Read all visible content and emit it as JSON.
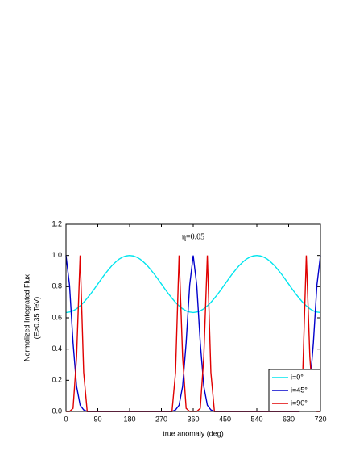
{
  "chart_data": {
    "type": "line",
    "title": "η=0.05",
    "x_label": "true anomaly (deg)",
    "y_label": [
      "Normalized Integrated Flux",
      "(E>0.35 TeV)"
    ],
    "x": [
      0,
      10,
      20,
      30,
      40,
      50,
      60,
      70,
      80,
      90,
      100,
      110,
      120,
      130,
      140,
      150,
      160,
      170,
      180,
      190,
      200,
      210,
      220,
      230,
      240,
      250,
      260,
      270,
      280,
      290,
      300,
      310,
      320,
      330,
      340,
      350,
      360,
      370,
      380,
      390,
      400,
      410,
      420,
      430,
      440,
      450,
      460,
      470,
      480,
      490,
      500,
      510,
      520,
      530,
      540,
      550,
      560,
      570,
      580,
      590,
      600,
      610,
      620,
      630,
      640,
      650,
      660,
      670,
      680,
      690,
      700,
      710,
      720
    ],
    "series": [
      {
        "name": "i=0°",
        "color": "#00e5ee",
        "values": [
          0.634,
          0.637,
          0.645,
          0.658,
          0.677,
          0.699,
          0.726,
          0.754,
          0.785,
          0.817,
          0.849,
          0.88,
          0.908,
          0.935,
          0.957,
          0.976,
          0.989,
          0.997,
          1.0,
          0.997,
          0.989,
          0.976,
          0.957,
          0.935,
          0.908,
          0.88,
          0.849,
          0.817,
          0.785,
          0.754,
          0.726,
          0.699,
          0.677,
          0.658,
          0.645,
          0.637,
          0.634,
          0.637,
          0.645,
          0.658,
          0.677,
          0.699,
          0.726,
          0.754,
          0.785,
          0.817,
          0.849,
          0.88,
          0.908,
          0.935,
          0.957,
          0.976,
          0.989,
          0.997,
          1.0,
          0.997,
          0.989,
          0.976,
          0.957,
          0.935,
          0.908,
          0.88,
          0.849,
          0.817,
          0.785,
          0.754,
          0.726,
          0.699,
          0.677,
          0.658,
          0.645,
          0.637,
          0.634
        ]
      },
      {
        "name": "i=45°",
        "color": "#0000cc",
        "values": [
          1,
          0.81,
          0.44,
          0.16,
          0.04,
          0.01,
          0,
          0,
          0,
          0,
          0,
          0,
          0,
          0,
          0,
          0,
          0,
          0,
          0,
          0,
          0,
          0,
          0,
          0,
          0,
          0,
          0,
          0,
          0,
          0,
          0,
          0.01,
          0.04,
          0.16,
          0.44,
          0.81,
          1,
          0.81,
          0.44,
          0.16,
          0.04,
          0.01,
          0,
          0,
          0,
          0,
          0,
          0,
          0,
          0,
          0,
          0,
          0,
          0,
          0,
          0,
          0,
          0,
          0,
          0,
          0,
          0,
          0,
          0,
          0,
          0,
          0,
          0.01,
          0.04,
          0.16,
          0.44,
          0.81,
          1
        ]
      },
      {
        "name": "i=90°",
        "color": "#e00000",
        "values": [
          0,
          0,
          0.02,
          0.35,
          1,
          0.25,
          0,
          0,
          0,
          0,
          0,
          0,
          0,
          0,
          0,
          0,
          0,
          0,
          0,
          0,
          0,
          0,
          0,
          0,
          0,
          0,
          0,
          0,
          0,
          0,
          0,
          0.25,
          1,
          0.35,
          0.02,
          0,
          0,
          0,
          0.02,
          0.35,
          1,
          0.25,
          0,
          0,
          0,
          0,
          0,
          0,
          0,
          0,
          0,
          0,
          0,
          0,
          0,
          0,
          0,
          0,
          0,
          0,
          0,
          0,
          0,
          0,
          0,
          0,
          0,
          0.25,
          1,
          0.35,
          0.02,
          0,
          0
        ]
      }
    ],
    "xlim": [
      0,
      720
    ],
    "xticks": [
      0,
      90,
      180,
      270,
      360,
      450,
      540,
      630,
      720
    ],
    "ylim": [
      0,
      1.2
    ],
    "yticks": [
      {
        "value": 0,
        "label": "0.0"
      },
      {
        "value": 0.2,
        "label": "0.2"
      },
      {
        "value": 0.4,
        "label": "0.4"
      },
      {
        "value": 0.6,
        "label": "0.6"
      },
      {
        "value": 0.8,
        "label": "0.8"
      },
      {
        "value": 1.0,
        "label": "1.0"
      },
      {
        "value": 1.2,
        "label": "1.2"
      }
    ],
    "legend": "lower right"
  }
}
